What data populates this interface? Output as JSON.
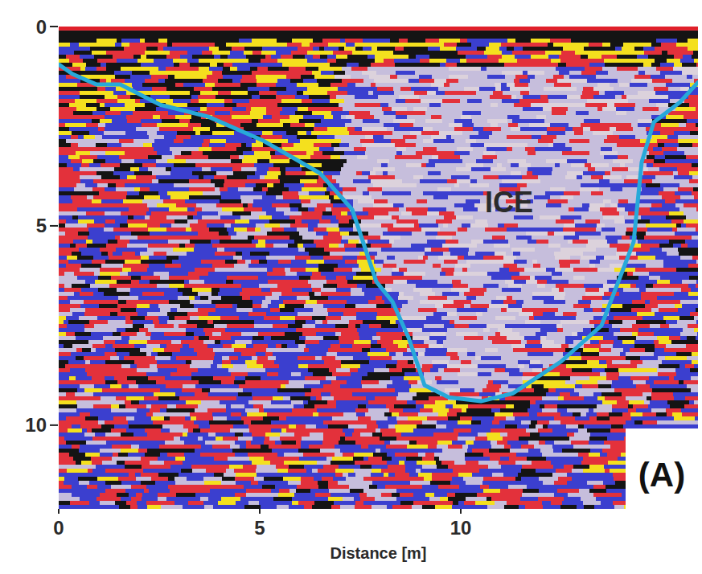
{
  "chart_data": {
    "type": "line",
    "xlabel": "Distance [m]",
    "xlim": [
      0,
      15.9
    ],
    "ylim": [
      0,
      12.1
    ],
    "xticks": [
      0,
      5,
      10
    ],
    "yticks": [
      0,
      5,
      10
    ],
    "x": [
      0,
      0.34,
      0.93,
      1.53,
      2.52,
      3.72,
      5.1,
      6.5,
      7.3,
      7.9,
      8.3,
      8.7,
      9.1,
      9.7,
      10.5,
      11.3,
      12.5,
      13.5,
      14.3,
      14.5,
      14.8,
      15.45,
      15.9
    ],
    "values": [
      0.95,
      1.19,
      1.45,
      1.45,
      1.96,
      2.26,
      2.87,
      3.68,
      4.59,
      6.4,
      6.9,
      7.8,
      9.0,
      9.3,
      9.4,
      9.2,
      8.4,
      7.5,
      5.4,
      3.4,
      2.4,
      1.9,
      1.4
    ],
    "color": "#27a9d9",
    "annotations": [
      {
        "text": "ICE",
        "x": 11.2,
        "y": 4.4
      }
    ],
    "panel_label": "(A)"
  }
}
